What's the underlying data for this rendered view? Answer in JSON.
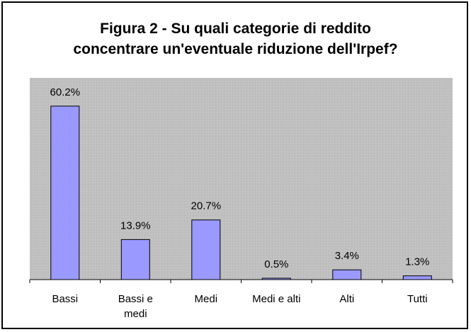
{
  "chart_data": {
    "type": "bar",
    "title_lines": [
      "Figura 2 - Su quali categorie di reddito",
      "concentrare un'eventuale riduzione dell'Irpef?"
    ],
    "categories": [
      [
        "Bassi"
      ],
      [
        "Bassi e",
        "medi"
      ],
      [
        "Medi"
      ],
      [
        "Medi e alti"
      ],
      [
        "Alti"
      ],
      [
        "Tutti"
      ]
    ],
    "values": [
      60.2,
      13.9,
      20.7,
      0.5,
      3.4,
      1.3
    ],
    "data_labels": [
      "60.2%",
      "13.9%",
      "20.7%",
      "0.5%",
      "3.4%",
      "1.3%"
    ],
    "ylim": [
      0,
      70
    ],
    "grid": false,
    "legend": false,
    "colors": {
      "bar_fill": "#9999ff",
      "bar_stroke": "#000000",
      "plot_background": "#c0c0c0",
      "axis": "#000000"
    }
  }
}
